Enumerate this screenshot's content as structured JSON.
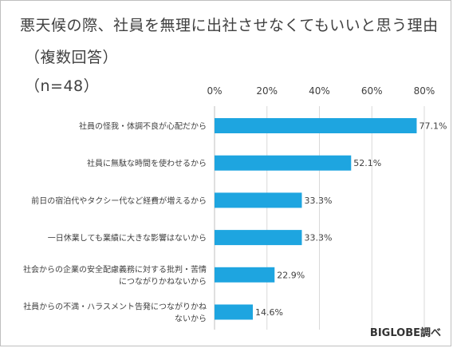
{
  "title": "悪天候の際、社員を無理に出社させなくてもいいと思う理由",
  "subtitle": "（複数回答）",
  "sample": "（n=48）",
  "source": "BIGLOBE調べ",
  "colors": {
    "bar": "#1ea5e0",
    "grid": "#d9d9d9",
    "axis": "#bfbfbf"
  },
  "chart_data": {
    "type": "bar",
    "orientation": "horizontal",
    "categories": [
      [
        "社員の怪我・体調不良が心配だから"
      ],
      [
        "社員に無駄な時間を使わせるから"
      ],
      [
        "前日の宿泊代やタクシー代など経費が増えるから"
      ],
      [
        "一日休業しても業績に大きな影響はないから"
      ],
      [
        "社会からの企業の安全配慮義務に対する批判・苦情",
        "につながりかねないから"
      ],
      [
        "社員からの不満・ハラスメント告発につながりかね",
        "ないから"
      ]
    ],
    "values": [
      77.1,
      52.1,
      33.3,
      33.3,
      22.9,
      14.6
    ],
    "value_labels": [
      "77.1%",
      "52.1%",
      "33.3%",
      "33.3%",
      "22.9%",
      "14.6%"
    ],
    "xlim": [
      0,
      80
    ],
    "xticks": [
      0,
      20,
      40,
      60,
      80
    ],
    "xtick_labels": [
      "0%",
      "20%",
      "40%",
      "60%",
      "80%"
    ],
    "xaxis_position": "top",
    "grid": true
  }
}
